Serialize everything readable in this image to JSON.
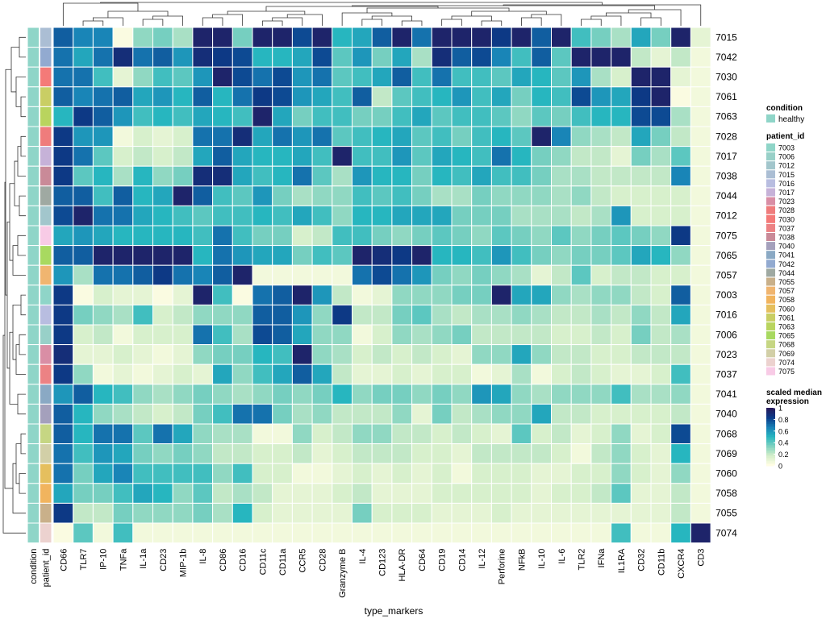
{
  "chart_data": {
    "type": "heatmap",
    "xlabel": "type_markers",
    "annotation_columns": [
      "condition",
      "patient_id"
    ],
    "columns": [
      "CD66",
      "TLR7",
      "IP-10",
      "TNFa",
      "IL-1a",
      "CD23",
      "MIP-1b",
      "IL-8",
      "CD86",
      "CD16",
      "CD11c",
      "CD11a",
      "CCR5",
      "CD28",
      "Granzyme B",
      "IL-4",
      "CD123",
      "HLA-DR",
      "CD64",
      "CD19",
      "CD14",
      "IL-12",
      "Perforine",
      "NFkB",
      "IL-10",
      "IL-6",
      "TLR2",
      "IFNa",
      "IL1RA",
      "CD32",
      "CD11b",
      "CXCR4",
      "CD3"
    ],
    "rows": [
      "7015",
      "7042",
      "7030",
      "7061",
      "7063",
      "7028",
      "7017",
      "7038",
      "7044",
      "7012",
      "7075",
      "7065",
      "7057",
      "7003",
      "7016",
      "7006",
      "7023",
      "7037",
      "7041",
      "7040",
      "7068",
      "7069",
      "7060",
      "7058",
      "7055",
      "7074"
    ],
    "values": [
      [
        0.75,
        0.65,
        0.65,
        0.02,
        0.3,
        0.35,
        0.25,
        0.95,
        0.95,
        0.35,
        0.95,
        0.95,
        0.8,
        0.95,
        0.5,
        0.55,
        0.75,
        0.95,
        0.7,
        0.95,
        0.95,
        0.95,
        0.85,
        0.95,
        0.75,
        0.95,
        0.45,
        0.35,
        0.25,
        0.55,
        0.35,
        0.95,
        0.1
      ],
      [
        0.7,
        0.55,
        0.7,
        0.9,
        0.7,
        0.75,
        0.6,
        0.9,
        0.85,
        0.8,
        0.5,
        0.5,
        0.55,
        0.8,
        0.4,
        0.6,
        0.35,
        0.55,
        0.25,
        0.9,
        0.75,
        0.8,
        0.65,
        0.45,
        0.75,
        0.4,
        0.95,
        0.95,
        0.95,
        0.2,
        0.1,
        0.2,
        0.05
      ],
      [
        0.7,
        0.7,
        0.45,
        0.1,
        0.3,
        0.45,
        0.4,
        0.6,
        0.95,
        0.8,
        0.7,
        0.8,
        0.6,
        0.7,
        0.4,
        0.45,
        0.55,
        0.75,
        0.45,
        0.7,
        0.45,
        0.45,
        0.4,
        0.55,
        0.5,
        0.4,
        0.6,
        0.25,
        0.15,
        0.95,
        0.95,
        0.1,
        0.05
      ],
      [
        0.75,
        0.65,
        0.7,
        0.75,
        0.55,
        0.6,
        0.5,
        0.75,
        0.5,
        0.7,
        0.85,
        0.8,
        0.6,
        0.55,
        0.45,
        0.75,
        0.2,
        0.4,
        0.45,
        0.5,
        0.6,
        0.45,
        0.55,
        0.35,
        0.5,
        0.45,
        0.8,
        0.6,
        0.55,
        0.85,
        0.95,
        0.02,
        0.05
      ],
      [
        0.5,
        0.85,
        0.75,
        0.6,
        0.45,
        0.5,
        0.45,
        0.55,
        0.5,
        0.45,
        0.95,
        0.55,
        0.35,
        0.45,
        0.45,
        0.35,
        0.35,
        0.45,
        0.55,
        0.4,
        0.45,
        0.45,
        0.4,
        0.3,
        0.4,
        0.35,
        0.45,
        0.5,
        0.5,
        0.8,
        0.8,
        0.25,
        0.05
      ],
      [
        0.85,
        0.6,
        0.6,
        0.05,
        0.15,
        0.1,
        0.15,
        0.7,
        0.7,
        0.9,
        0.55,
        0.7,
        0.6,
        0.7,
        0.4,
        0.45,
        0.5,
        0.55,
        0.4,
        0.45,
        0.35,
        0.45,
        0.5,
        0.4,
        0.95,
        0.65,
        0.3,
        0.25,
        0.2,
        0.55,
        0.35,
        0.2,
        0.05
      ],
      [
        0.85,
        0.7,
        0.4,
        0.15,
        0.2,
        0.15,
        0.2,
        0.55,
        0.75,
        0.55,
        0.5,
        0.5,
        0.55,
        0.45,
        0.95,
        0.45,
        0.45,
        0.6,
        0.4,
        0.55,
        0.5,
        0.45,
        0.7,
        0.5,
        0.35,
        0.3,
        0.2,
        0.2,
        0.1,
        0.35,
        0.25,
        0.4,
        0.05
      ],
      [
        0.85,
        0.4,
        0.5,
        0.25,
        0.5,
        0.3,
        0.35,
        0.9,
        0.9,
        0.55,
        0.45,
        0.5,
        0.7,
        0.4,
        0.25,
        0.6,
        0.5,
        0.5,
        0.35,
        0.5,
        0.45,
        0.55,
        0.45,
        0.45,
        0.35,
        0.25,
        0.25,
        0.2,
        0.2,
        0.2,
        0.2,
        0.65,
        0.05
      ],
      [
        0.75,
        0.75,
        0.45,
        0.75,
        0.5,
        0.55,
        0.95,
        0.75,
        0.45,
        0.4,
        0.6,
        0.35,
        0.25,
        0.3,
        0.3,
        0.45,
        0.4,
        0.45,
        0.35,
        0.25,
        0.25,
        0.35,
        0.3,
        0.3,
        0.3,
        0.25,
        0.3,
        0.2,
        0.15,
        0.15,
        0.15,
        0.15,
        0.05
      ],
      [
        0.8,
        0.95,
        0.7,
        0.7,
        0.55,
        0.5,
        0.45,
        0.4,
        0.45,
        0.45,
        0.5,
        0.45,
        0.55,
        0.45,
        0.3,
        0.5,
        0.5,
        0.55,
        0.55,
        0.55,
        0.35,
        0.35,
        0.35,
        0.25,
        0.25,
        0.25,
        0.2,
        0.25,
        0.6,
        0.15,
        0.15,
        0.15,
        0.05
      ],
      [
        0.55,
        0.6,
        0.55,
        0.5,
        0.5,
        0.5,
        0.5,
        0.45,
        0.7,
        0.45,
        0.35,
        0.35,
        0.15,
        0.2,
        0.45,
        0.45,
        0.35,
        0.3,
        0.35,
        0.4,
        0.35,
        0.3,
        0.4,
        0.35,
        0.3,
        0.4,
        0.3,
        0.35,
        0.4,
        0.35,
        0.3,
        0.85,
        0.05
      ],
      [
        0.75,
        0.75,
        0.95,
        0.95,
        0.95,
        0.95,
        0.95,
        0.5,
        0.7,
        0.6,
        0.55,
        0.55,
        0.35,
        0.45,
        0.4,
        0.95,
        0.9,
        0.85,
        0.95,
        0.5,
        0.5,
        0.45,
        0.6,
        0.45,
        0.35,
        0.3,
        0.35,
        0.35,
        0.4,
        0.55,
        0.5,
        0.3,
        0.05
      ],
      [
        0.6,
        0.25,
        0.7,
        0.7,
        0.75,
        0.85,
        0.7,
        0.65,
        0.75,
        0.95,
        0.05,
        0.05,
        0.05,
        0.05,
        0.05,
        0.7,
        0.8,
        0.7,
        0.6,
        0.35,
        0.3,
        0.35,
        0.3,
        0.25,
        0.1,
        0.2,
        0.4,
        0.15,
        0.2,
        0.2,
        0.15,
        0.15,
        0.05
      ],
      [
        0.85,
        0.02,
        0.15,
        0.1,
        0.1,
        0.02,
        0.1,
        0.95,
        0.45,
        0.02,
        0.7,
        0.75,
        0.95,
        0.6,
        0.2,
        0.05,
        0.1,
        0.3,
        0.3,
        0.3,
        0.35,
        0.35,
        0.95,
        0.55,
        0.55,
        0.3,
        0.25,
        0.3,
        0.3,
        0.2,
        0.15,
        0.75,
        0.05
      ],
      [
        0.85,
        0.35,
        0.3,
        0.25,
        0.45,
        0.15,
        0.2,
        0.3,
        0.3,
        0.3,
        0.75,
        0.75,
        0.6,
        0.3,
        0.85,
        0.2,
        0.2,
        0.35,
        0.4,
        0.25,
        0.2,
        0.25,
        0.25,
        0.3,
        0.25,
        0.2,
        0.2,
        0.25,
        0.2,
        0.3,
        0.2,
        0.55,
        0.05
      ],
      [
        0.85,
        0.15,
        0.2,
        0.05,
        0.15,
        0.15,
        0.15,
        0.7,
        0.45,
        0.25,
        0.8,
        0.75,
        0.55,
        0.3,
        0.3,
        0.05,
        0.15,
        0.3,
        0.25,
        0.3,
        0.35,
        0.2,
        0.2,
        0.2,
        0.2,
        0.15,
        0.15,
        0.2,
        0.15,
        0.35,
        0.2,
        0.25,
        0.05
      ],
      [
        0.9,
        0.1,
        0.1,
        0.15,
        0.1,
        0.05,
        0.1,
        0.3,
        0.35,
        0.35,
        0.5,
        0.45,
        0.95,
        0.3,
        0.25,
        0.15,
        0.2,
        0.15,
        0.2,
        0.15,
        0.1,
        0.3,
        0.3,
        0.55,
        0.3,
        0.2,
        0.2,
        0.15,
        0.15,
        0.2,
        0.2,
        0.2,
        0.05
      ],
      [
        0.85,
        0.3,
        0.05,
        0.1,
        0.05,
        0.1,
        0.15,
        0.1,
        0.55,
        0.3,
        0.45,
        0.55,
        0.75,
        0.55,
        0.2,
        0.1,
        0.1,
        0.15,
        0.1,
        0.15,
        0.15,
        0.05,
        0.1,
        0.25,
        0.05,
        0.15,
        0.2,
        0.15,
        0.1,
        0.1,
        0.15,
        0.45,
        0.05
      ],
      [
        0.6,
        0.75,
        0.5,
        0.45,
        0.3,
        0.25,
        0.3,
        0.35,
        0.3,
        0.25,
        0.3,
        0.35,
        0.3,
        0.35,
        0.5,
        0.3,
        0.35,
        0.35,
        0.3,
        0.35,
        0.3,
        0.6,
        0.55,
        0.3,
        0.25,
        0.3,
        0.3,
        0.3,
        0.45,
        0.25,
        0.25,
        0.3,
        0.05
      ],
      [
        0.75,
        0.5,
        0.3,
        0.25,
        0.2,
        0.15,
        0.2,
        0.35,
        0.45,
        0.7,
        0.7,
        0.35,
        0.25,
        0.3,
        0.2,
        0.2,
        0.2,
        0.3,
        0.1,
        0.35,
        0.2,
        0.25,
        0.3,
        0.3,
        0.55,
        0.2,
        0.2,
        0.15,
        0.15,
        0.15,
        0.15,
        0.2,
        0.05
      ],
      [
        0.75,
        0.5,
        0.7,
        0.7,
        0.4,
        0.7,
        0.55,
        0.3,
        0.25,
        0.25,
        0.05,
        0.05,
        0.3,
        0.15,
        0.2,
        0.3,
        0.3,
        0.2,
        0.2,
        0.15,
        0.2,
        0.15,
        0.1,
        0.4,
        0.15,
        0.2,
        0.1,
        0.15,
        0.3,
        0.1,
        0.15,
        0.8,
        0.05
      ],
      [
        0.7,
        0.45,
        0.6,
        0.55,
        0.35,
        0.3,
        0.35,
        0.3,
        0.2,
        0.2,
        0.15,
        0.15,
        0.2,
        0.1,
        0.15,
        0.2,
        0.2,
        0.2,
        0.15,
        0.15,
        0.1,
        0.2,
        0.2,
        0.2,
        0.2,
        0.15,
        0.05,
        0.2,
        0.3,
        0.15,
        0.1,
        0.5,
        0.05
      ],
      [
        0.7,
        0.35,
        0.55,
        0.65,
        0.45,
        0.45,
        0.45,
        0.45,
        0.3,
        0.45,
        0.15,
        0.15,
        0.05,
        0.05,
        0.1,
        0.15,
        0.1,
        0.15,
        0.1,
        0.15,
        0.05,
        0.15,
        0.15,
        0.15,
        0.1,
        0.1,
        0.15,
        0.15,
        0.3,
        0.15,
        0.1,
        0.3,
        0.05
      ],
      [
        0.55,
        0.35,
        0.35,
        0.45,
        0.55,
        0.5,
        0.3,
        0.4,
        0.2,
        0.25,
        0.2,
        0.1,
        0.1,
        0.1,
        0.15,
        0.2,
        0.1,
        0.1,
        0.1,
        0.15,
        0.15,
        0.15,
        0.15,
        0.15,
        0.1,
        0.15,
        0.15,
        0.2,
        0.4,
        0.1,
        0.1,
        0.2,
        0.05
      ],
      [
        0.85,
        0.2,
        0.2,
        0.35,
        0.3,
        0.3,
        0.3,
        0.35,
        0.25,
        0.5,
        0.15,
        0.1,
        0.1,
        0.1,
        0.1,
        0.35,
        0.15,
        0.15,
        0.15,
        0.1,
        0.1,
        0.1,
        0.15,
        0.1,
        0.1,
        0.1,
        0.1,
        0.1,
        0.1,
        0.1,
        0.1,
        0.2,
        0.05
      ],
      [
        0.02,
        0.4,
        0.05,
        0.45,
        0.05,
        0.05,
        0.05,
        0.05,
        0.05,
        0.05,
        0.05,
        0.05,
        0.05,
        0.05,
        0.05,
        0.05,
        0.05,
        0.05,
        0.05,
        0.05,
        0.05,
        0.05,
        0.05,
        0.05,
        0.05,
        0.05,
        0.05,
        0.05,
        0.45,
        0.05,
        0.05,
        0.5,
        0.95
      ]
    ],
    "patient_colors": {
      "7003": "#8fd5c8",
      "7006": "#98d0c8",
      "7012": "#a2c6cc",
      "7015": "#abbed4",
      "7016": "#b8bde0",
      "7017": "#c6b2d8",
      "7023": "#d98ea5",
      "7028": "#ef7c7c",
      "7030": "#f47a78",
      "7037": "#ec8284",
      "7038": "#c98a98",
      "7040": "#a4a0bc",
      "7041": "#8aa9c4",
      "7042": "#92aad0",
      "7044": "#9fa9a2",
      "7055": "#c9b08a",
      "7057": "#f0b570",
      "7058": "#f1b45e",
      "7060": "#e5bf5e",
      "7061": "#c9ce64",
      "7063": "#b9d45e",
      "7065": "#a8d960",
      "7068": "#c6d683",
      "7069": "#d2cfa7",
      "7074": "#ecd2cf",
      "7075": "#f8cbe6"
    },
    "legend": {
      "condition_title": "condition",
      "condition_items": [
        {
          "label": "healthy",
          "color": "#8fd5c8"
        }
      ],
      "patient_title": "patient_id",
      "patient_items": [
        "7003",
        "7006",
        "7012",
        "7015",
        "7016",
        "7017",
        "7023",
        "7028",
        "7030",
        "7037",
        "7038",
        "7040",
        "7041",
        "7042",
        "7044",
        "7055",
        "7057",
        "7058",
        "7060",
        "7061",
        "7063",
        "7065",
        "7068",
        "7069",
        "7074",
        "7075"
      ],
      "scale_title_line1": "scaled median",
      "scale_title_line2": "expression",
      "scale_ticks": [
        "1",
        "0.8",
        "0.6",
        "0.4",
        "0.2",
        "0"
      ],
      "scale_stops": [
        "#fffde4",
        "#d3eec9",
        "#7fd2c0",
        "#27b6bf",
        "#1880b6",
        "#0a3c8a",
        "#261a5c"
      ]
    }
  }
}
